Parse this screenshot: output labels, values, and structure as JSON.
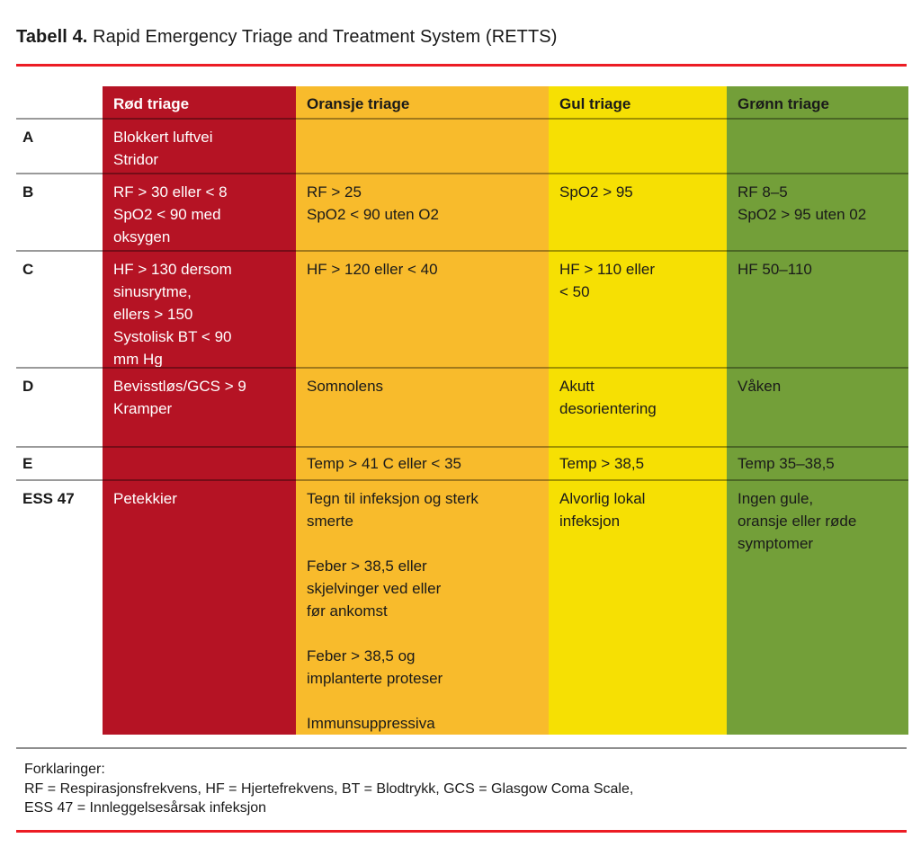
{
  "title": {
    "label": "Tabell 4.",
    "text": " Rapid Emergency Triage and Treatment System (RETTS)"
  },
  "colors": {
    "red_column": "#b51324",
    "orange_column": "#f8bb2c",
    "yellow_column": "#f6e003",
    "green_column": "#739f39",
    "rule_red": "#ec1c24",
    "rule_gray": "#8e8e8e",
    "text_dark": "#1a1a1a",
    "text_on_red": "#ffffff"
  },
  "table": {
    "corner_label": "",
    "columns": [
      {
        "label": "Rød triage"
      },
      {
        "label": "Oransje triage"
      },
      {
        "label": "Gul triage"
      },
      {
        "label": "Grønn triage"
      }
    ],
    "rows": [
      {
        "label": "A",
        "red": "Blokkert luftvei\nStridor",
        "orange": "",
        "yellow": "",
        "green": ""
      },
      {
        "label": "B",
        "red": "RF > 30 eller < 8\nSpO2 < 90 med\noksygen",
        "orange": "RF > 25\nSpO2 < 90 uten O2",
        "yellow": "SpO2 > 95",
        "green": "RF 8–5\nSpO2 > 95 uten 02"
      },
      {
        "label": "C",
        "red": "HF > 130 dersom\nsinusrytme,\nellers > 150\nSystolisk BT < 90\nmm Hg",
        "orange": "HF > 120 eller < 40",
        "yellow": "HF > 110 eller\n< 50",
        "green": "HF 50–110"
      },
      {
        "label": "D",
        "red": "Bevisstløs/GCS > 9\nKramper",
        "orange": "Somnolens",
        "yellow": "Akutt\ndesorientering",
        "green": "Våken"
      },
      {
        "label": "E",
        "red": "",
        "orange": "Temp > 41 C eller < 35",
        "yellow": "Temp > 38,5",
        "green": "Temp 35–38,5"
      },
      {
        "label": "ESS 47",
        "red": "Petekkier",
        "orange": "Tegn til infeksjon og sterk\nsmerte\n\nFeber > 38,5 eller\nskjelvinger ved eller\nfør ankomst\n\nFeber > 38,5 og\nimplanterte proteser\n\nImmunsuppressiva",
        "yellow": "Alvorlig lokal\ninfeksjon",
        "green": "Ingen gule,\noransje eller røde\nsymptomer"
      }
    ]
  },
  "footer": {
    "lines": [
      "Forklaringer:",
      "RF = Respirasjonsfrekvens, HF = Hjertefrekvens, BT = Blodtrykk, GCS = Glasgow Coma Scale,",
      "ESS 47 = Innleggelsesårsak infeksjon"
    ]
  }
}
